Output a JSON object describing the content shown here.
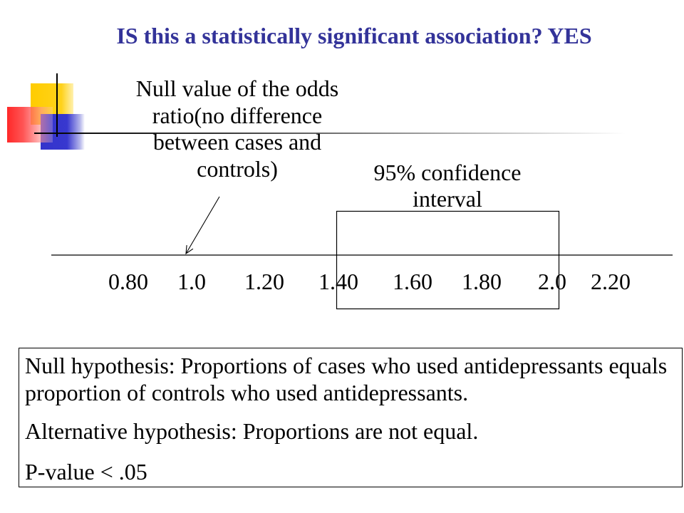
{
  "colors": {
    "title": "#333399",
    "text": "#000000",
    "logo_yellow": "#FFCC00",
    "logo_red": "#FF2828",
    "logo_blue": "#3333CC"
  },
  "title": "IS this a statistically significant association? YES",
  "null_value_label": {
    "lines": [
      "Null value of the odds",
      "ratio(no difference",
      "between cases and",
      "controls)"
    ]
  },
  "ci_label": {
    "lines": [
      "95% confidence",
      "interval"
    ]
  },
  "axis": {
    "ticks": [
      "0.80",
      "1.0",
      "1.20",
      "1.40",
      "1.60",
      "1.80",
      "2.0",
      "2.20"
    ]
  },
  "hypothesis_box": {
    "null_hypothesis_lines": [
      "Null hypothesis: Proportions of cases who used antidepressants equals",
      "proportion of controls who used antidepressants."
    ],
    "alternative_hypothesis": "Alternative hypothesis: Proportions are not equal.",
    "p_value": "P-value < .05"
  }
}
